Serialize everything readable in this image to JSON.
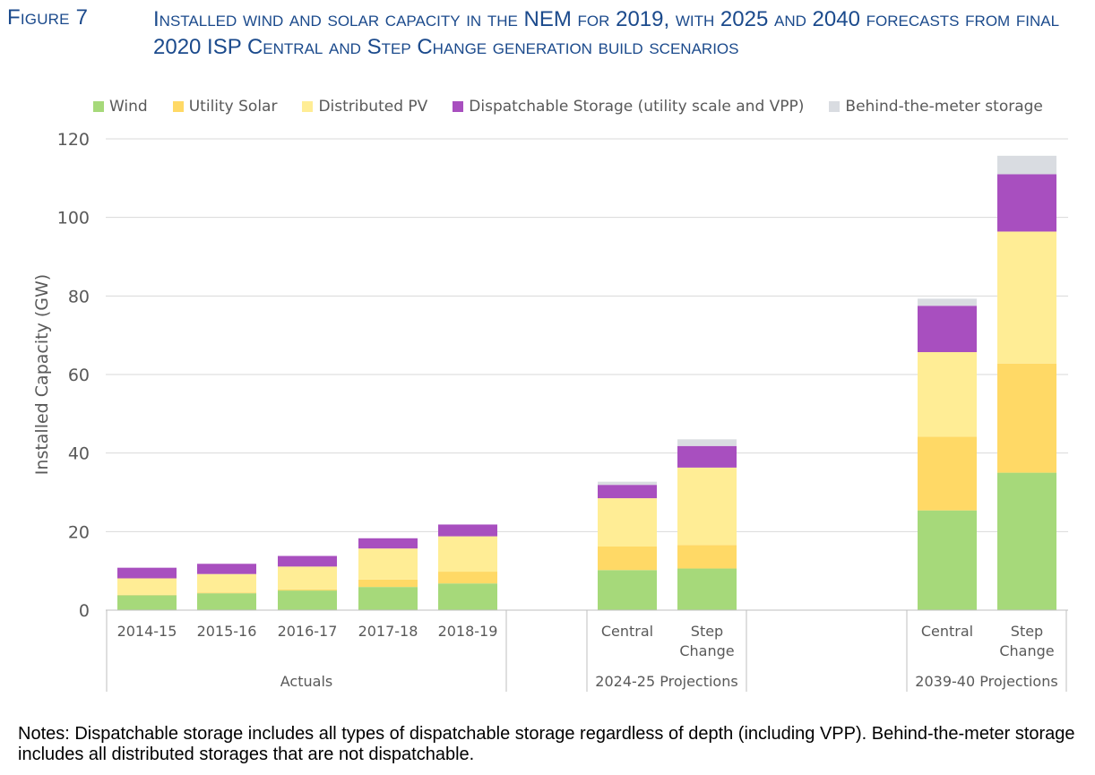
{
  "figure": {
    "label": "Figure 7",
    "title": "Installed wind and solar capacity in the NEM for 2019, with 2025 and 2040 forecasts from final 2020 ISP Central and Step Change generation build scenarios"
  },
  "chart_data": {
    "type": "bar",
    "stacked": true,
    "ylabel": "Installed Capacity (GW)",
    "ylim": [
      0,
      120
    ],
    "yticks": [
      0,
      20,
      40,
      60,
      80,
      100,
      120
    ],
    "grid": true,
    "legend_position": "top",
    "categories": [
      "2014-15",
      "2015-16",
      "2016-17",
      "2017-18",
      "2018-19",
      "Central",
      "Step Change",
      "Central",
      "Step Change"
    ],
    "groups": [
      {
        "label": "Actuals",
        "categories": [
          0,
          1,
          2,
          3,
          4
        ]
      },
      {
        "label": "2024-25 Projections",
        "categories": [
          5,
          6
        ]
      },
      {
        "label": "2039-40 Projections",
        "categories": [
          7,
          8
        ]
      }
    ],
    "series": [
      {
        "name": "Wind",
        "color": "#a6d97a",
        "values": [
          3.8,
          4.3,
          5.0,
          5.9,
          6.8,
          10.2,
          10.6,
          25.4,
          35.0
        ]
      },
      {
        "name": "Utility Solar",
        "color": "#ffd966",
        "values": [
          0.1,
          0.2,
          0.3,
          1.9,
          3.0,
          6.0,
          6.0,
          18.8,
          27.8
        ]
      },
      {
        "name": "Distributed PV",
        "color": "#ffed95",
        "values": [
          4.2,
          4.7,
          5.8,
          7.9,
          9.0,
          12.3,
          19.7,
          21.5,
          33.6
        ]
      },
      {
        "name": "Dispatchable Storage (utility scale and VPP)",
        "color": "#a84fbf",
        "values": [
          2.7,
          2.6,
          2.7,
          2.6,
          3.0,
          3.4,
          5.5,
          11.8,
          14.6
        ]
      },
      {
        "name": "Behind-the-meter storage",
        "color": "#d9dce1",
        "values": [
          0,
          0,
          0,
          0,
          0,
          0.8,
          1.7,
          1.8,
          4.7
        ]
      }
    ]
  },
  "notes": "Notes: Dispatchable storage includes all types of dispatchable storage regardless of depth (including VPP). Behind-the-meter storage includes all distributed storages that are not dispatchable."
}
